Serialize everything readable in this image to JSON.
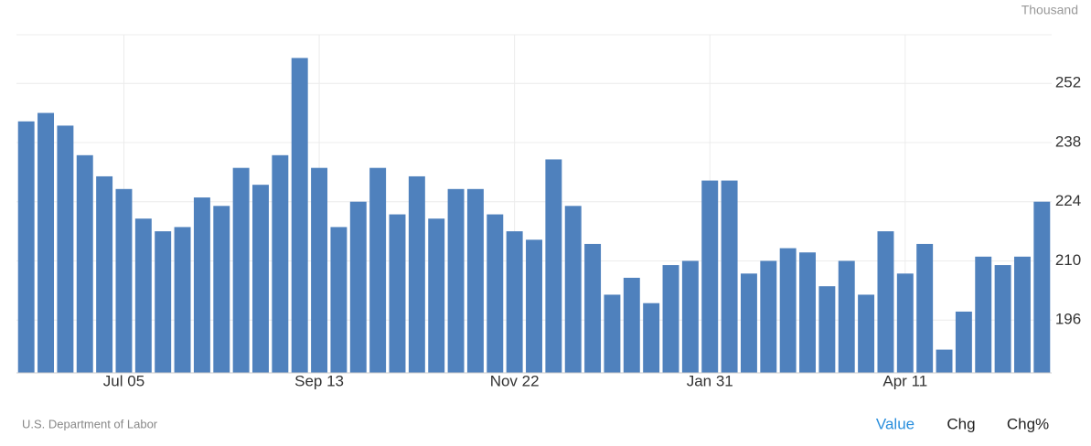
{
  "chart_data": {
    "type": "bar",
    "unit_label": "Thousand",
    "source": "U.S. Department of Labor",
    "categories": [
      null,
      null,
      null,
      null,
      null,
      "Jul 05",
      null,
      null,
      null,
      null,
      null,
      null,
      null,
      null,
      null,
      "Sep 13",
      null,
      null,
      null,
      null,
      null,
      null,
      null,
      null,
      null,
      "Nov 22",
      null,
      null,
      null,
      null,
      null,
      null,
      null,
      null,
      null,
      "Jan 31",
      null,
      null,
      null,
      null,
      null,
      null,
      null,
      null,
      null,
      "Apr 11",
      null,
      null,
      null,
      null,
      null,
      null,
      null
    ],
    "values": [
      243,
      245,
      242,
      235,
      230,
      227,
      220,
      217,
      218,
      225,
      223,
      232,
      228,
      235,
      258,
      232,
      218,
      224,
      232,
      221,
      230,
      220,
      227,
      227,
      221,
      217,
      215,
      234,
      223,
      214,
      202,
      206,
      200,
      209,
      210,
      229,
      229,
      207,
      210,
      213,
      212,
      204,
      210,
      202,
      217,
      207,
      214,
      189,
      198,
      211,
      209,
      211,
      224
    ],
    "color": "#4f81bd",
    "ylim": [
      183.5,
      263.5
    ],
    "yticks": [
      196,
      210,
      224,
      238,
      252
    ],
    "grid": true
  },
  "controls": [
    "Value",
    "Chg",
    "Chg%"
  ]
}
